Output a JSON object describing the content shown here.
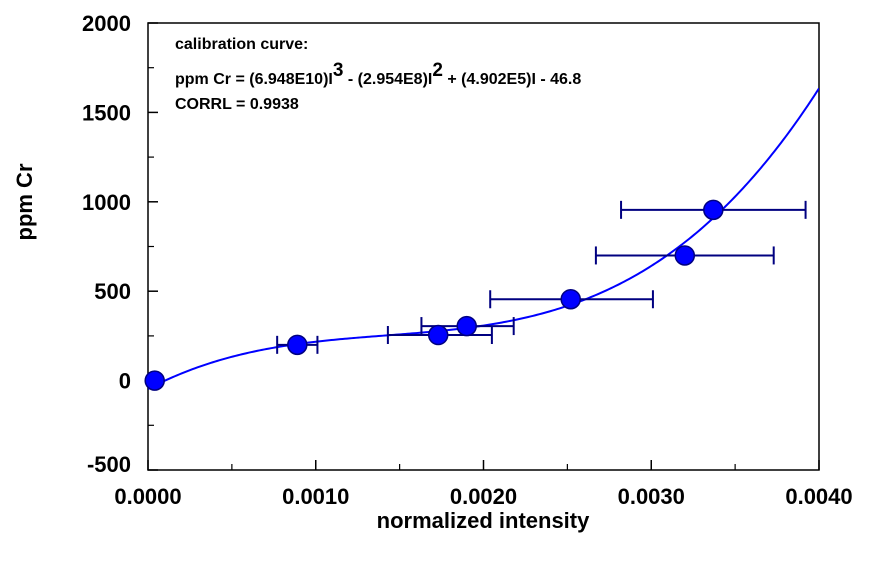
{
  "chart_data": {
    "type": "scatter",
    "xlabel": "normalized intensity",
    "ylabel": "ppm Cr",
    "xlim": [
      0.0,
      0.004
    ],
    "ylim": [
      -500,
      2000
    ],
    "x_ticks": [
      "0.0000",
      "0.0010",
      "0.0020",
      "0.0030",
      "0.0040"
    ],
    "y_ticks": [
      "-500",
      "0",
      "500",
      "1000",
      "1500",
      "2000"
    ],
    "points": [
      {
        "x": 4e-05,
        "y": 0,
        "xerr_low": null,
        "xerr_high": null
      },
      {
        "x": 0.00089,
        "y": 200,
        "xerr_low": 0.00077,
        "xerr_high": 0.00101
      },
      {
        "x": 0.00173,
        "y": 255,
        "xerr_low": 0.00143,
        "xerr_high": 0.00205
      },
      {
        "x": 0.0019,
        "y": 305,
        "xerr_low": 0.00163,
        "xerr_high": 0.00218
      },
      {
        "x": 0.00252,
        "y": 455,
        "xerr_low": 0.00204,
        "xerr_high": 0.00301
      },
      {
        "x": 0.0032,
        "y": 700,
        "xerr_low": 0.00267,
        "xerr_high": 0.00373
      },
      {
        "x": 0.00337,
        "y": 955,
        "xerr_low": 0.00282,
        "xerr_high": 0.00392
      }
    ],
    "fit": {
      "coefficients": {
        "a3": 69480000000,
        "a2": -295400000,
        "a1": 490200,
        "a0": -46.8
      },
      "color": "#0000ff"
    },
    "annotations": {
      "line1": "calibration curve:",
      "eq_part1": "ppm Cr = (6.948E10)I",
      "eq_sup1": "3",
      "eq_part2": " - (2.954E8)I",
      "eq_sup2": "2",
      "eq_part3": " + (4.902E5)I - 46.8",
      "line3": "CORRL = 0.9938"
    },
    "colors": {
      "marker": "#0000ff",
      "errorbar": "#000080",
      "curve": "#0000ff"
    }
  }
}
